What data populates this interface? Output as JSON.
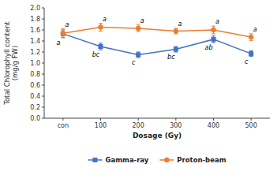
{
  "chart_data": {
    "type": "line",
    "xlabel": "Dosage (Gy)",
    "ylabel": [
      "Total Chlorophyll content",
      "(mg/g FW)"
    ],
    "categories": [
      "con",
      "100",
      "200",
      "300",
      "400",
      "500"
    ],
    "series": [
      {
        "name": "Gamma-ray",
        "color": "#4472c4",
        "marker": "square",
        "values": [
          1.53,
          1.3,
          1.15,
          1.25,
          1.43,
          1.17
        ],
        "errors": [
          0.07,
          0.06,
          0.05,
          0.05,
          0.06,
          0.05
        ],
        "annotations": [
          "a",
          "bc",
          "c",
          "bc",
          "ab",
          "c"
        ]
      },
      {
        "name": "Proton-beam",
        "color": "#ed7d31",
        "marker": "circle",
        "values": [
          1.54,
          1.65,
          1.63,
          1.58,
          1.6,
          1.47
        ],
        "errors": [
          0.08,
          0.07,
          0.06,
          0.05,
          0.07,
          0.06
        ],
        "annotations": [
          "a",
          "a",
          "a",
          "a",
          "a",
          "a"
        ]
      }
    ],
    "ylim": [
      0.0,
      2.0
    ],
    "yticks": [
      {
        "value": 0.0,
        "label": "0.0"
      },
      0.2,
      0.4,
      0.6,
      0.8,
      {
        "value": 1.0,
        "label": "1.0"
      },
      1.2,
      1.4,
      1.6,
      1.8,
      {
        "value": 2.0,
        "label": "2.0"
      }
    ],
    "grid": false,
    "legend": "bottom"
  }
}
